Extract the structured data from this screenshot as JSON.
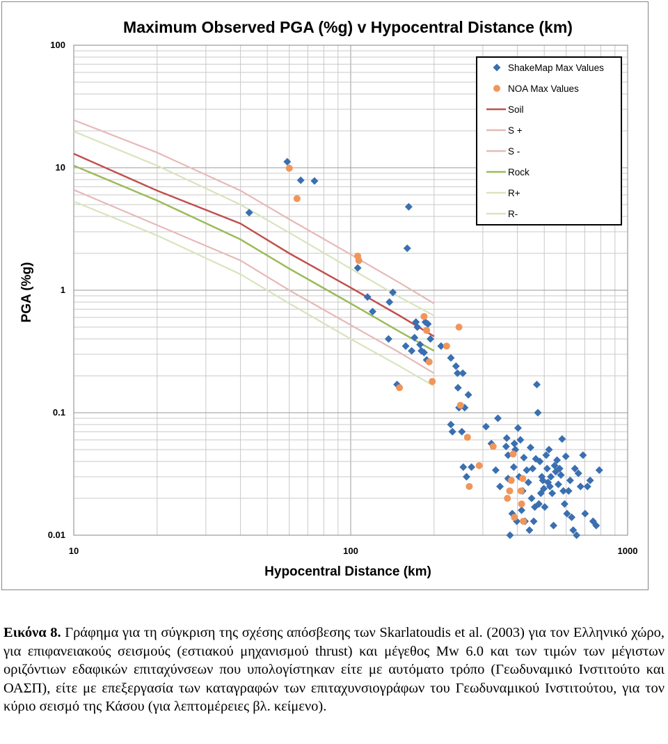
{
  "chart_data": {
    "type": "scatter",
    "title": "Maximum Observed PGA (%g) v Hypocentral Distance (km)",
    "xlabel": "Hypocentral Distance (km)",
    "ylabel": "PGA (%g)",
    "x_scale": "log",
    "y_scale": "log",
    "xlim": [
      10,
      1000
    ],
    "ylim": [
      0.01,
      100
    ],
    "x_ticks": [
      "10",
      "100",
      "1000"
    ],
    "y_ticks": [
      "0.01",
      "0.1",
      "1",
      "10",
      "100"
    ],
    "grid": true,
    "legend_position": "top-right",
    "series": [
      {
        "name": "ShakeMap Max Values",
        "kind": "points",
        "marker": "diamond",
        "color": "#3a6fb0",
        "points": [
          [
            43,
            4.3
          ],
          [
            59,
            11.2
          ],
          [
            66,
            7.9
          ],
          [
            74,
            7.8
          ],
          [
            106,
            1.52
          ],
          [
            115,
            0.88
          ],
          [
            120,
            0.67
          ],
          [
            138,
            0.8
          ],
          [
            142,
            0.96
          ],
          [
            137,
            0.4
          ],
          [
            147,
            0.17
          ],
          [
            160,
            2.2
          ],
          [
            162,
            4.8
          ],
          [
            158,
            0.35
          ],
          [
            166,
            0.32
          ],
          [
            170,
            0.41
          ],
          [
            172,
            0.55
          ],
          [
            174,
            0.5
          ],
          [
            178,
            0.36
          ],
          [
            180,
            0.32
          ],
          [
            184,
            0.31
          ],
          [
            186,
            0.55
          ],
          [
            188,
            0.27
          ],
          [
            190,
            0.53
          ],
          [
            194,
            0.4
          ],
          [
            212,
            0.35
          ],
          [
            230,
            0.28
          ],
          [
            240,
            0.24
          ],
          [
            243,
            0.21
          ],
          [
            254,
            0.21
          ],
          [
            244,
            0.16
          ],
          [
            246,
            0.11
          ],
          [
            230,
            0.08
          ],
          [
            233,
            0.07
          ],
          [
            252,
            0.07
          ],
          [
            258,
            0.11
          ],
          [
            266,
            0.14
          ],
          [
            255,
            0.036
          ],
          [
            262,
            0.03
          ],
          [
            273,
            0.036
          ],
          [
            308,
            0.077
          ],
          [
            322,
            0.056
          ],
          [
            334,
            0.034
          ],
          [
            346,
            0.025
          ],
          [
            340,
            0.09
          ],
          [
            364,
            0.053
          ],
          [
            366,
            0.062
          ],
          [
            370,
            0.045
          ],
          [
            370,
            0.029
          ],
          [
            376,
            0.01
          ],
          [
            383,
            0.015
          ],
          [
            388,
            0.036
          ],
          [
            390,
            0.056
          ],
          [
            393,
            0.05
          ],
          [
            398,
            0.013
          ],
          [
            402,
            0.075
          ],
          [
            406,
            0.03
          ],
          [
            410,
            0.06
          ],
          [
            414,
            0.016
          ],
          [
            418,
            0.023
          ],
          [
            422,
            0.043
          ],
          [
            426,
            0.013
          ],
          [
            432,
            0.034
          ],
          [
            438,
            0.027
          ],
          [
            442,
            0.011
          ],
          [
            446,
            0.052
          ],
          [
            450,
            0.02
          ],
          [
            454,
            0.035
          ],
          [
            458,
            0.013
          ],
          [
            462,
            0.017
          ],
          [
            466,
            0.042
          ],
          [
            470,
            0.17
          ],
          [
            474,
            0.1
          ],
          [
            478,
            0.018
          ],
          [
            482,
            0.04
          ],
          [
            486,
            0.022
          ],
          [
            490,
            0.03
          ],
          [
            494,
            0.028
          ],
          [
            498,
            0.024
          ],
          [
            502,
            0.017
          ],
          [
            508,
            0.045
          ],
          [
            512,
            0.035
          ],
          [
            516,
            0.027
          ],
          [
            520,
            0.05
          ],
          [
            524,
            0.025
          ],
          [
            528,
            0.03
          ],
          [
            534,
            0.022
          ],
          [
            540,
            0.012
          ],
          [
            545,
            0.037
          ],
          [
            550,
            0.033
          ],
          [
            556,
            0.041
          ],
          [
            562,
            0.026
          ],
          [
            568,
            0.035
          ],
          [
            574,
            0.031
          ],
          [
            580,
            0.061
          ],
          [
            586,
            0.023
          ],
          [
            592,
            0.018
          ],
          [
            598,
            0.044
          ],
          [
            604,
            0.015
          ],
          [
            612,
            0.023
          ],
          [
            620,
            0.028
          ],
          [
            628,
            0.014
          ],
          [
            636,
            0.011
          ],
          [
            645,
            0.035
          ],
          [
            654,
            0.01
          ],
          [
            664,
            0.032
          ],
          [
            676,
            0.025
          ],
          [
            690,
            0.045
          ],
          [
            702,
            0.015
          ],
          [
            716,
            0.025
          ],
          [
            732,
            0.028
          ],
          [
            750,
            0.013
          ],
          [
            770,
            0.012
          ],
          [
            790,
            0.034
          ]
        ]
      },
      {
        "name": "NOA Max Values",
        "kind": "points",
        "marker": "circle",
        "color": "#f0965a",
        "points": [
          [
            60,
            9.9
          ],
          [
            64,
            5.6
          ],
          [
            106,
            1.9
          ],
          [
            107,
            1.75
          ],
          [
            150,
            0.16
          ],
          [
            184,
            0.61
          ],
          [
            188,
            0.47
          ],
          [
            192,
            0.26
          ],
          [
            197,
            0.18
          ],
          [
            222,
            0.35
          ],
          [
            246,
            0.5
          ],
          [
            249,
            0.115
          ],
          [
            264,
            0.063
          ],
          [
            268,
            0.025
          ],
          [
            291,
            0.037
          ],
          [
            327,
            0.053
          ],
          [
            368,
            0.02
          ],
          [
            375,
            0.023
          ],
          [
            380,
            0.028
          ],
          [
            386,
            0.046
          ],
          [
            390,
            0.014
          ],
          [
            412,
            0.023
          ],
          [
            414,
            0.018
          ],
          [
            418,
            0.029
          ],
          [
            420,
            0.013
          ]
        ]
      },
      {
        "name": "Soil",
        "kind": "line",
        "color": "#c0504d",
        "points": [
          [
            10,
            13.0
          ],
          [
            20,
            6.5
          ],
          [
            40,
            3.5
          ],
          [
            60,
            2.0
          ],
          [
            100,
            1.05
          ],
          [
            150,
            0.62
          ],
          [
            200,
            0.42
          ]
        ]
      },
      {
        "name": "S +",
        "kind": "line",
        "color": "#e6b9b8",
        "points": [
          [
            10,
            24.5
          ],
          [
            20,
            13.3
          ],
          [
            40,
            6.5
          ],
          [
            60,
            3.8
          ],
          [
            100,
            1.96
          ],
          [
            150,
            1.15
          ],
          [
            200,
            0.78
          ]
        ]
      },
      {
        "name": "S -",
        "kind": "line",
        "color": "#e6b9b8",
        "points": [
          [
            10,
            6.6
          ],
          [
            20,
            3.4
          ],
          [
            40,
            1.75
          ],
          [
            60,
            1.0
          ],
          [
            100,
            0.52
          ],
          [
            150,
            0.31
          ],
          [
            200,
            0.21
          ]
        ]
      },
      {
        "name": "Rock",
        "kind": "line",
        "color": "#9bbb59",
        "points": [
          [
            10,
            10.4
          ],
          [
            20,
            5.4
          ],
          [
            40,
            2.6
          ],
          [
            60,
            1.5
          ],
          [
            100,
            0.78
          ],
          [
            150,
            0.46
          ],
          [
            200,
            0.32
          ]
        ]
      },
      {
        "name": "R+",
        "kind": "line",
        "color": "#d7e4bd",
        "points": [
          [
            10,
            19.8
          ],
          [
            20,
            10.4
          ],
          [
            40,
            5.0
          ],
          [
            60,
            2.95
          ],
          [
            100,
            1.5
          ],
          [
            150,
            0.88
          ],
          [
            200,
            0.62
          ]
        ]
      },
      {
        "name": "R-",
        "kind": "line",
        "color": "#d7e4bd",
        "points": [
          [
            10,
            5.3
          ],
          [
            20,
            2.8
          ],
          [
            40,
            1.35
          ],
          [
            60,
            0.78
          ],
          [
            100,
            0.4
          ],
          [
            150,
            0.24
          ],
          [
            200,
            0.165
          ]
        ]
      }
    ]
  },
  "caption": {
    "label": "Εικόνα 8.",
    "text": " Γράφημα για τη σύγκριση της σχέσης απόσβεσης των Skarlatoudis et al. (2003) για τον Ελληνικό χώρο, για επιφανειακούς σεισμούς (εστιακού μηχανισμού thrust) και μέγεθος Mw 6.0 και των τιμών των μέγιστων οριζόντιων εδαφικών επιταχύνσεων που υπολογίστηκαν είτε με αυτόματο τρόπο (Γεωδυναμικό Ινστιτούτο και ΟΑΣΠ), είτε με επεξεργασία των καταγραφών των επιταχυνσιογράφων του Γεωδυναμικού Ινστιτούτου, για τον κύριο σεισμό της Κάσου (για λεπτομέρειες βλ. κείμενο)."
  }
}
